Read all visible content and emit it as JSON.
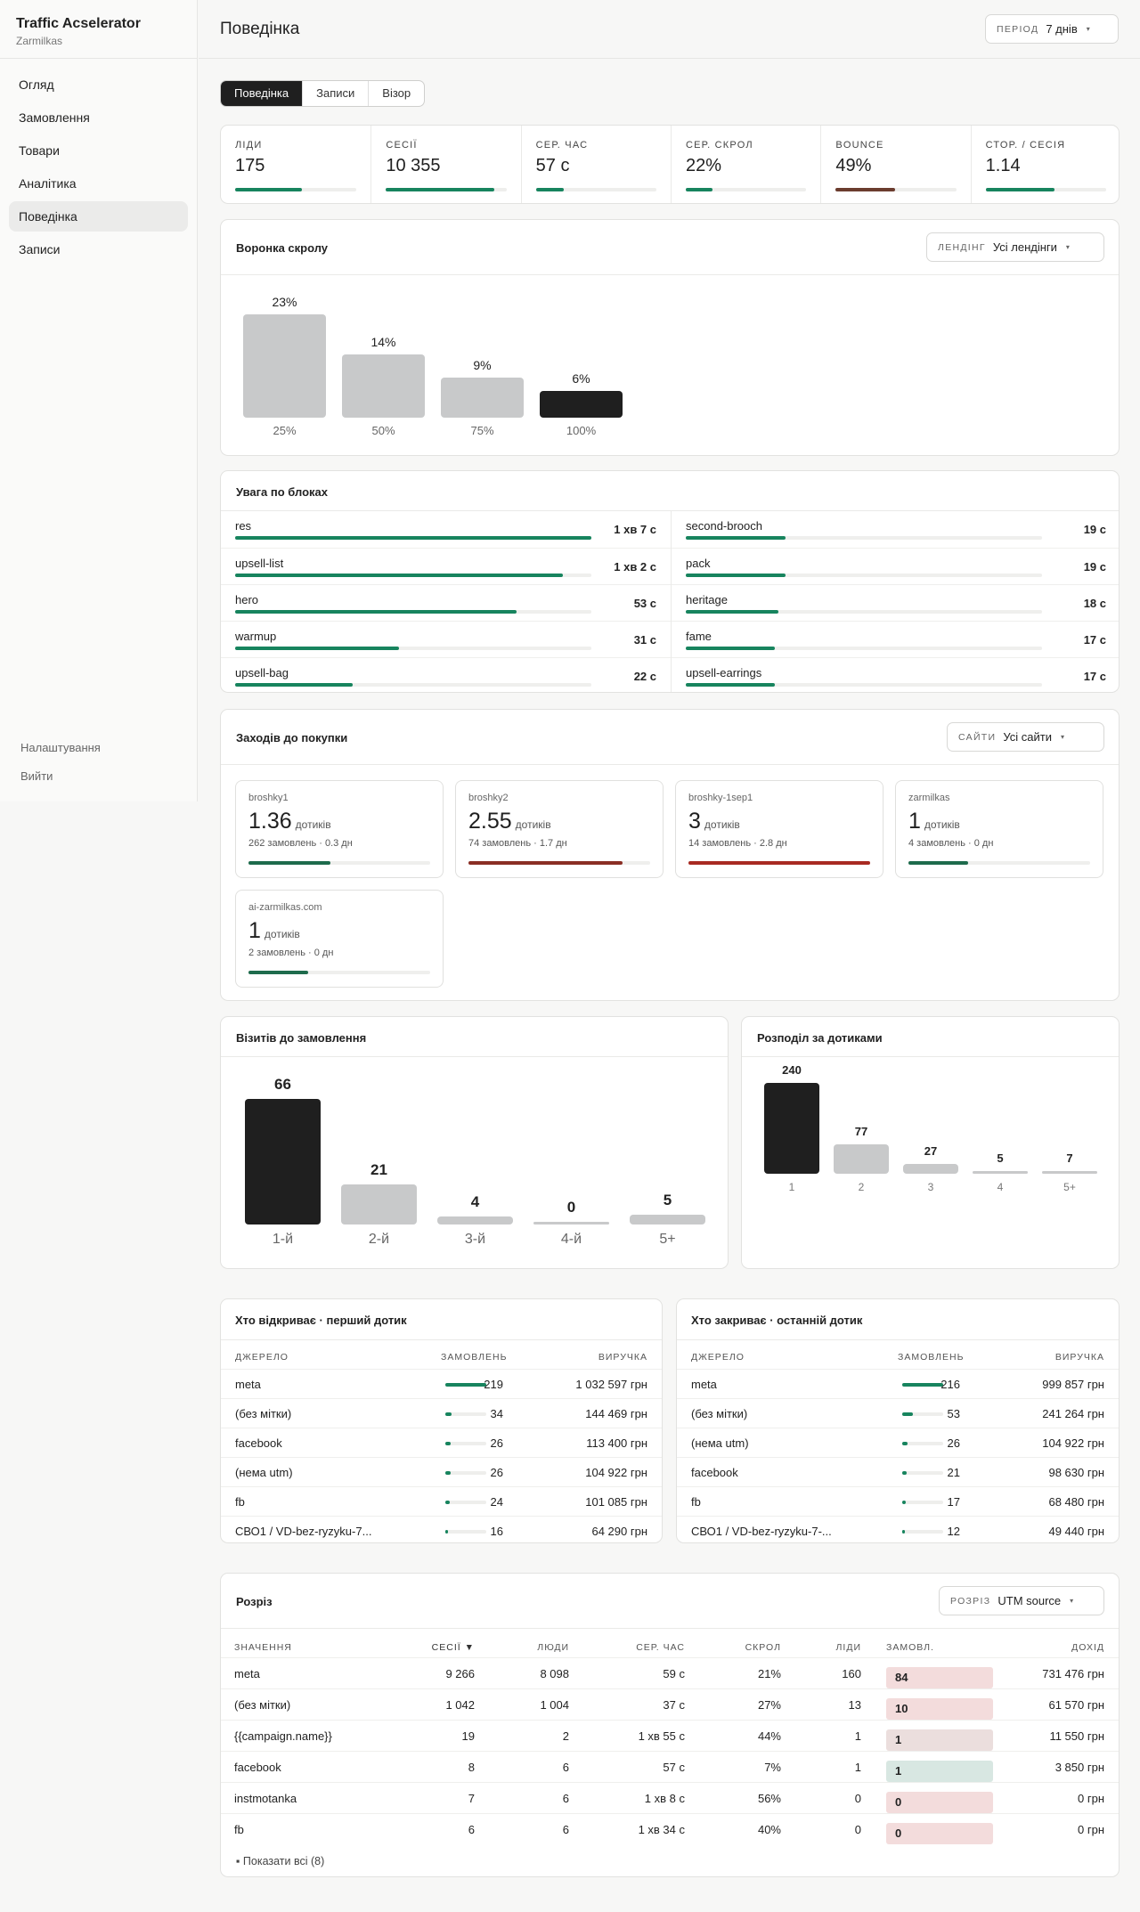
{
  "brand": {
    "title": "Traffic Acselerator",
    "subtitle": "Zarmilkas"
  },
  "nav": [
    {
      "label": "Огляд",
      "active": false
    },
    {
      "label": "Замовлення",
      "active": false
    },
    {
      "label": "Товари",
      "active": false
    },
    {
      "label": "Аналітика",
      "active": false
    },
    {
      "label": "Поведінка",
      "active": true
    },
    {
      "label": "Записи",
      "active": false
    }
  ],
  "nav_bottom": {
    "settings": "Налаштування",
    "logout": "Вийти"
  },
  "header": {
    "title": "Поведінка",
    "period_key": "ПЕРІОД",
    "period_value": "7 днів",
    "caret": "▾"
  },
  "tabs": [
    {
      "label": "Поведінка",
      "active": true
    },
    {
      "label": "Записи",
      "active": false
    },
    {
      "label": "Візор",
      "active": false
    }
  ],
  "kpis": [
    {
      "label": "ЛІДИ",
      "value": "175",
      "fill": 0.55,
      "color": "#17845e"
    },
    {
      "label": "СЕСІЇ",
      "value": "10 355",
      "fill": 0.9,
      "color": "#17845e"
    },
    {
      "label": "СЕР. ЧАС",
      "value": "57 с",
      "fill": 0.23,
      "color": "#17845e"
    },
    {
      "label": "СЕР. СКРОЛ",
      "value": "22%",
      "fill": 0.22,
      "color": "#17845e"
    },
    {
      "label": "BOUNCE",
      "value": "49%",
      "fill": 0.49,
      "color": "#6b3c2e"
    },
    {
      "label": "СТОР. / СЕСІЯ",
      "value": "1.14",
      "fill": 0.57,
      "color": "#17845e"
    }
  ],
  "scroll_funnel": {
    "title": "Воронка скролу",
    "filter_key": "ЛЕНДІНГ",
    "filter_value": "Усі лендінги",
    "bars": [
      {
        "pct": "23%",
        "value": 23,
        "label": "25%",
        "dark": false
      },
      {
        "pct": "14%",
        "value": 14,
        "label": "50%",
        "dark": false
      },
      {
        "pct": "9%",
        "value": 9,
        "label": "75%",
        "dark": false
      },
      {
        "pct": "6%",
        "value": 6,
        "label": "100%",
        "dark": true
      }
    ]
  },
  "attention": {
    "title": "Увага по блоках",
    "left": [
      {
        "name": "res",
        "time": "1 хв 7 с",
        "fill": 1.0
      },
      {
        "name": "upsell-list",
        "time": "1 хв 2 с",
        "fill": 0.92
      },
      {
        "name": "hero",
        "time": "53 с",
        "fill": 0.79
      },
      {
        "name": "warmup",
        "time": "31 с",
        "fill": 0.46
      },
      {
        "name": "upsell-bag",
        "time": "22 с",
        "fill": 0.33
      }
    ],
    "right": [
      {
        "name": "second-brooch",
        "time": "19 с",
        "fill": 0.28
      },
      {
        "name": "pack",
        "time": "19 с",
        "fill": 0.28
      },
      {
        "name": "heritage",
        "time": "18 с",
        "fill": 0.26
      },
      {
        "name": "fame",
        "time": "17 с",
        "fill": 0.25
      },
      {
        "name": "upsell-earrings",
        "time": "17 с",
        "fill": 0.25
      }
    ]
  },
  "touches": {
    "title": "Заходів до покупки",
    "filter_key": "САЙТИ",
    "filter_value": "Усі сайти",
    "unit": "дотиків",
    "cards": [
      {
        "name": "broshky1",
        "value": "1.36",
        "meta": "262 замовлень · 0.3 дн",
        "fill": 0.45,
        "color": "#1e6b4c"
      },
      {
        "name": "broshky2",
        "value": "2.55",
        "meta": "74 замовлень · 1.7 дн",
        "fill": 0.85,
        "color": "#8a2e24"
      },
      {
        "name": "broshky-1sep1",
        "value": "3",
        "meta": "14 замовлень · 2.8 дн",
        "fill": 1.0,
        "color": "#a82a22"
      },
      {
        "name": "zarmilkas",
        "value": "1",
        "meta": "4 замовлень · 0 дн",
        "fill": 0.33,
        "color": "#1e6b4c"
      },
      {
        "name": "ai-zarmilkas.com",
        "value": "1",
        "meta": "2 замовлень · 0 дн",
        "fill": 0.33,
        "color": "#1e6b4c"
      }
    ]
  },
  "visits_chart": {
    "title": "Візитів до замовлення",
    "bars": [
      {
        "label": "1-й",
        "value": 66,
        "text": "66",
        "dark": true
      },
      {
        "label": "2-й",
        "value": 21,
        "text": "21",
        "dark": false
      },
      {
        "label": "3-й",
        "value": 4,
        "text": "4",
        "dark": false
      },
      {
        "label": "4-й",
        "value": 0,
        "text": "0",
        "dark": false
      },
      {
        "label": "5+",
        "value": 5,
        "text": "5",
        "dark": false
      }
    ]
  },
  "touch_dist": {
    "title": "Розподіл за дотиками",
    "bars": [
      {
        "label": "1",
        "value": 240,
        "text": "240",
        "dark": true
      },
      {
        "label": "2",
        "value": 77,
        "text": "77",
        "dark": false
      },
      {
        "label": "3",
        "value": 27,
        "text": "27",
        "dark": false
      },
      {
        "label": "4",
        "value": 5,
        "text": "5",
        "dark": false
      },
      {
        "label": "5+",
        "value": 7,
        "text": "7",
        "dark": false
      }
    ]
  },
  "first_touch": {
    "title": "Хто відкриває · перший дотик",
    "cols": [
      "ДЖЕРЕЛО",
      "ЗАМОВЛЕНЬ",
      "ВИРУЧКА"
    ],
    "rows": [
      {
        "src": "meta",
        "orders": "219",
        "rev": "1 032 597 грн",
        "fill": 1.0
      },
      {
        "src": "(без мітки)",
        "orders": "34",
        "rev": "144 469 грн",
        "fill": 0.16
      },
      {
        "src": "facebook",
        "orders": "26",
        "rev": "113 400 грн",
        "fill": 0.12
      },
      {
        "src": "(нема utm)",
        "orders": "26",
        "rev": "104 922 грн",
        "fill": 0.12
      },
      {
        "src": "fb",
        "orders": "24",
        "rev": "101 085 грн",
        "fill": 0.11
      },
      {
        "src": "СВО1 / VD-bez-ryzyku-7...",
        "orders": "16",
        "rev": "64 290 грн",
        "fill": 0.07
      }
    ]
  },
  "last_touch": {
    "title": "Хто закриває · останній дотик",
    "cols": [
      "ДЖЕРЕЛО",
      "ЗАМОВЛЕНЬ",
      "ВИРУЧКА"
    ],
    "rows": [
      {
        "src": "meta",
        "orders": "216",
        "rev": "999 857 грн",
        "fill": 1.0
      },
      {
        "src": "(без мітки)",
        "orders": "53",
        "rev": "241 264 грн",
        "fill": 0.25
      },
      {
        "src": "(нема utm)",
        "orders": "26",
        "rev": "104 922 грн",
        "fill": 0.12
      },
      {
        "src": "facebook",
        "orders": "21",
        "rev": "98 630 грн",
        "fill": 0.1
      },
      {
        "src": "fb",
        "orders": "17",
        "rev": "68 480 грн",
        "fill": 0.08
      },
      {
        "src": "СВО1 / VD-bez-ryzyku-7-...",
        "orders": "12",
        "rev": "49 440 грн",
        "fill": 0.06
      }
    ]
  },
  "cut": {
    "title": "Розріз",
    "filter_key": "РОЗРІЗ",
    "filter_value": "UTM source",
    "cols": [
      "ЗНАЧЕННЯ",
      "СЕСІЇ ▼",
      "ЛЮДИ",
      "СЕР. ЧАС",
      "СКРОЛ",
      "ЛІДИ",
      "ЗАМОВЛ.",
      "ДОХІД"
    ],
    "rows": [
      {
        "v": "meta",
        "s": "9 266",
        "p": "8 098",
        "t": "59 с",
        "sc": "21%",
        "l": "160",
        "o": "84",
        "oc": "#f3dcdc",
        "r": "731 476 грн"
      },
      {
        "v": "(без мітки)",
        "s": "1 042",
        "p": "1 004",
        "t": "37 с",
        "sc": "27%",
        "l": "13",
        "o": "10",
        "oc": "#f3dcdc",
        "r": "61 570 грн"
      },
      {
        "v": "{{campaign.name}}",
        "s": "19",
        "p": "2",
        "t": "1 хв 55 с",
        "sc": "44%",
        "l": "1",
        "o": "1",
        "oc": "#ebdedd",
        "r": "11 550 грн"
      },
      {
        "v": "facebook",
        "s": "8",
        "p": "6",
        "t": "57 с",
        "sc": "7%",
        "l": "1",
        "o": "1",
        "oc": "#d8e7e2",
        "r": "3 850 грн"
      },
      {
        "v": "instmotanka",
        "s": "7",
        "p": "6",
        "t": "1 хв 8 с",
        "sc": "56%",
        "l": "0",
        "o": "0",
        "oc": "#f3dcdc",
        "r": "0 грн"
      },
      {
        "v": "fb",
        "s": "6",
        "p": "6",
        "t": "1 хв 34 с",
        "sc": "40%",
        "l": "0",
        "o": "0",
        "oc": "#f3dcdc",
        "r": "0 грн"
      }
    ],
    "show_all": "▪ Показати всі (8)"
  }
}
